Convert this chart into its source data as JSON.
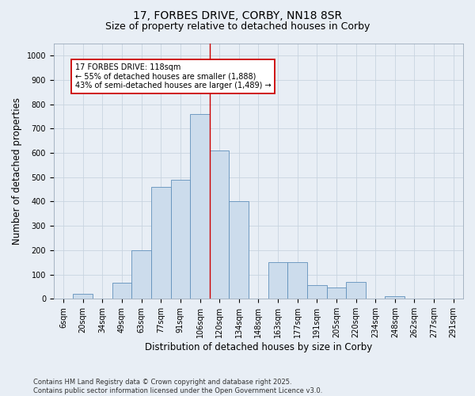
{
  "title": "17, FORBES DRIVE, CORBY, NN18 8SR",
  "subtitle": "Size of property relative to detached houses in Corby",
  "xlabel": "Distribution of detached houses by size in Corby",
  "ylabel": "Number of detached properties",
  "footnote": "Contains HM Land Registry data © Crown copyright and database right 2025.\nContains public sector information licensed under the Open Government Licence v3.0.",
  "bin_labels": [
    "6sqm",
    "20sqm",
    "34sqm",
    "49sqm",
    "63sqm",
    "77sqm",
    "91sqm",
    "106sqm",
    "120sqm",
    "134sqm",
    "148sqm",
    "163sqm",
    "177sqm",
    "191sqm",
    "205sqm",
    "220sqm",
    "234sqm",
    "248sqm",
    "262sqm",
    "277sqm",
    "291sqm"
  ],
  "bar_values": [
    0,
    20,
    0,
    65,
    200,
    460,
    490,
    760,
    610,
    400,
    0,
    150,
    150,
    55,
    45,
    70,
    0,
    10,
    0,
    0,
    0
  ],
  "bar_color": "#ccdcec",
  "bar_edge_color": "#6090bb",
  "property_line_x": 8.0,
  "property_sqm": 118,
  "annotation_text": "17 FORBES DRIVE: 118sqm\n← 55% of detached houses are smaller (1,888)\n43% of semi-detached houses are larger (1,489) →",
  "annotation_box_color": "#ffffff",
  "annotation_box_edge_color": "#cc0000",
  "vline_color": "#cc0000",
  "ylim": [
    0,
    1050
  ],
  "yticks": [
    0,
    100,
    200,
    300,
    400,
    500,
    600,
    700,
    800,
    900,
    1000
  ],
  "background_color": "#e8eef5",
  "grid_color": "#c8d4e0",
  "title_fontsize": 10,
  "subtitle_fontsize": 9,
  "axis_fontsize": 8.5,
  "tick_fontsize": 7,
  "footnote_fontsize": 6
}
